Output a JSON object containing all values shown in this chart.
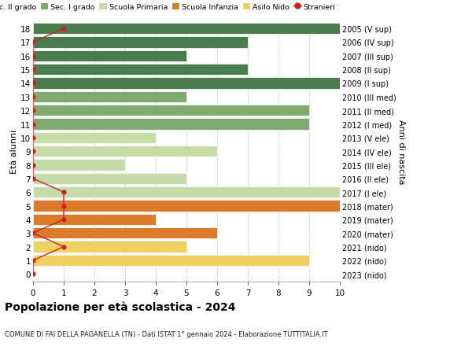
{
  "ages": [
    18,
    17,
    16,
    15,
    14,
    13,
    12,
    11,
    10,
    9,
    8,
    7,
    6,
    5,
    4,
    3,
    2,
    1,
    0
  ],
  "right_labels": [
    "2005 (V sup)",
    "2006 (IV sup)",
    "2007 (III sup)",
    "2008 (II sup)",
    "2009 (I sup)",
    "2010 (III med)",
    "2011 (II med)",
    "2012 (I med)",
    "2013 (V ele)",
    "2014 (IV ele)",
    "2015 (III ele)",
    "2016 (II ele)",
    "2017 (I ele)",
    "2018 (mater)",
    "2019 (mater)",
    "2020 (mater)",
    "2021 (nido)",
    "2022 (nido)",
    "2023 (nido)"
  ],
  "bar_values": [
    10,
    7,
    5,
    7,
    10,
    5,
    9,
    9,
    4,
    6,
    3,
    5,
    10,
    10,
    4,
    6,
    5,
    9,
    0
  ],
  "bar_colors": [
    "#4a7c4e",
    "#4a7c4e",
    "#4a7c4e",
    "#4a7c4e",
    "#4a7c4e",
    "#7faa6e",
    "#7faa6e",
    "#7faa6e",
    "#c5dba8",
    "#c5dba8",
    "#c5dba8",
    "#c5dba8",
    "#c5dba8",
    "#d97b2a",
    "#d97b2a",
    "#d97b2a",
    "#f0d060",
    "#f0d060",
    "#f0d060"
  ],
  "stranieri_x": [
    1,
    0,
    0,
    0,
    0,
    0,
    0,
    0,
    0,
    0,
    0,
    0,
    1,
    1,
    1,
    0,
    1,
    0,
    0
  ],
  "legend_labels": [
    "Sec. II grado",
    "Sec. I grado",
    "Scuola Primaria",
    "Scuola Infanzia",
    "Asilo Nido",
    "Stranieri"
  ],
  "legend_colors": [
    "#4a7c4e",
    "#7faa6e",
    "#c5dba8",
    "#d97b2a",
    "#f0d060",
    "#cc2222"
  ],
  "title": "Popolazione per età scolastica - 2024",
  "subtitle": "COMUNE DI FAI DELLA PAGANELLA (TN) - Dati ISTAT 1° gennaio 2024 - Elaborazione TUTTITALIA.IT",
  "ylabel_left": "Età alunni",
  "ylabel_right": "Anni di nascita",
  "xlim": [
    0,
    10
  ],
  "xticks": [
    0,
    1,
    2,
    3,
    4,
    5,
    6,
    7,
    8,
    9,
    10
  ],
  "bg_color": "#ffffff",
  "grid_color": "#bbbbbb",
  "bar_height": 0.82
}
